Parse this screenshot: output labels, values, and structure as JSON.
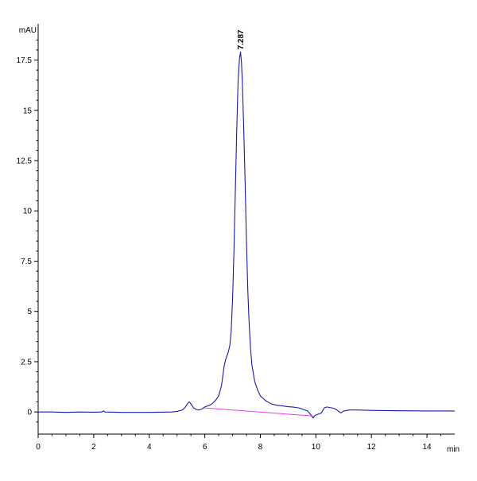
{
  "chart_data": {
    "type": "line",
    "title": "",
    "xlabel": "min",
    "ylabel": "mAU",
    "xlim": [
      0,
      15
    ],
    "ylim": [
      -1.1,
      19.3
    ],
    "x_ticks": [
      0,
      2,
      4,
      6,
      8,
      10,
      12,
      14
    ],
    "x_tick_labels": [
      "0",
      "2",
      "4",
      "6",
      "8",
      "10",
      "12",
      "14"
    ],
    "y_ticks": [
      0,
      2.5,
      5,
      7.5,
      10,
      12.5,
      15,
      17.5
    ],
    "y_tick_labels": [
      "0",
      "2.5",
      "5",
      "7.5",
      "10",
      "12.5",
      "15",
      "17.5"
    ],
    "grid": false,
    "peak_label": {
      "text": "7.287",
      "x": 7.287,
      "y": 17.9
    },
    "series": [
      {
        "color": "#1a1aa8",
        "x": [
          0,
          0.5,
          1.0,
          1.5,
          2.0,
          2.3,
          2.35,
          2.4,
          3.0,
          4.0,
          4.8,
          5.0,
          5.2,
          5.3,
          5.4,
          5.45,
          5.5,
          5.6,
          5.7,
          5.8,
          5.9,
          6.0,
          6.1,
          6.2,
          6.3,
          6.4,
          6.5,
          6.6,
          6.7,
          6.75,
          6.8,
          6.85,
          6.9,
          6.95,
          7.0,
          7.05,
          7.1,
          7.15,
          7.2,
          7.25,
          7.287,
          7.32,
          7.35,
          7.4,
          7.45,
          7.5,
          7.55,
          7.6,
          7.65,
          7.7,
          7.8,
          7.9,
          8.0,
          8.2,
          8.4,
          8.6,
          8.8,
          9.0,
          9.2,
          9.4,
          9.5,
          9.6,
          9.7,
          9.8,
          9.85,
          9.9,
          9.95,
          10.0,
          10.1,
          10.2,
          10.3,
          10.4,
          10.5,
          10.6,
          10.7,
          10.8,
          10.9,
          11.0,
          11.2,
          11.5,
          12.0,
          13.0,
          14.0,
          15.0
        ],
        "y": [
          0.0,
          0.0,
          -0.02,
          0.0,
          -0.01,
          0.0,
          0.06,
          0.0,
          -0.02,
          -0.02,
          0.0,
          0.03,
          0.1,
          0.25,
          0.45,
          0.5,
          0.4,
          0.2,
          0.12,
          0.1,
          0.15,
          0.25,
          0.3,
          0.35,
          0.45,
          0.6,
          0.8,
          1.3,
          2.3,
          2.6,
          2.8,
          3.0,
          3.3,
          4.0,
          5.6,
          8.0,
          11.0,
          14.0,
          16.5,
          17.6,
          17.9,
          17.4,
          16.5,
          14.2,
          11.5,
          8.5,
          6.0,
          4.3,
          3.1,
          2.3,
          1.5,
          1.1,
          0.8,
          0.55,
          0.4,
          0.33,
          0.3,
          0.26,
          0.24,
          0.2,
          0.15,
          0.1,
          0.05,
          -0.1,
          -0.2,
          -0.3,
          -0.2,
          -0.15,
          -0.1,
          -0.05,
          0.2,
          0.25,
          0.22,
          0.2,
          0.15,
          0.05,
          -0.05,
          0.05,
          0.1,
          0.1,
          0.08,
          0.06,
          0.05,
          0.05
        ]
      },
      {
        "color": "#e040e0",
        "x": [
          6.0,
          9.9
        ],
        "y": [
          0.2,
          -0.2
        ]
      }
    ]
  }
}
